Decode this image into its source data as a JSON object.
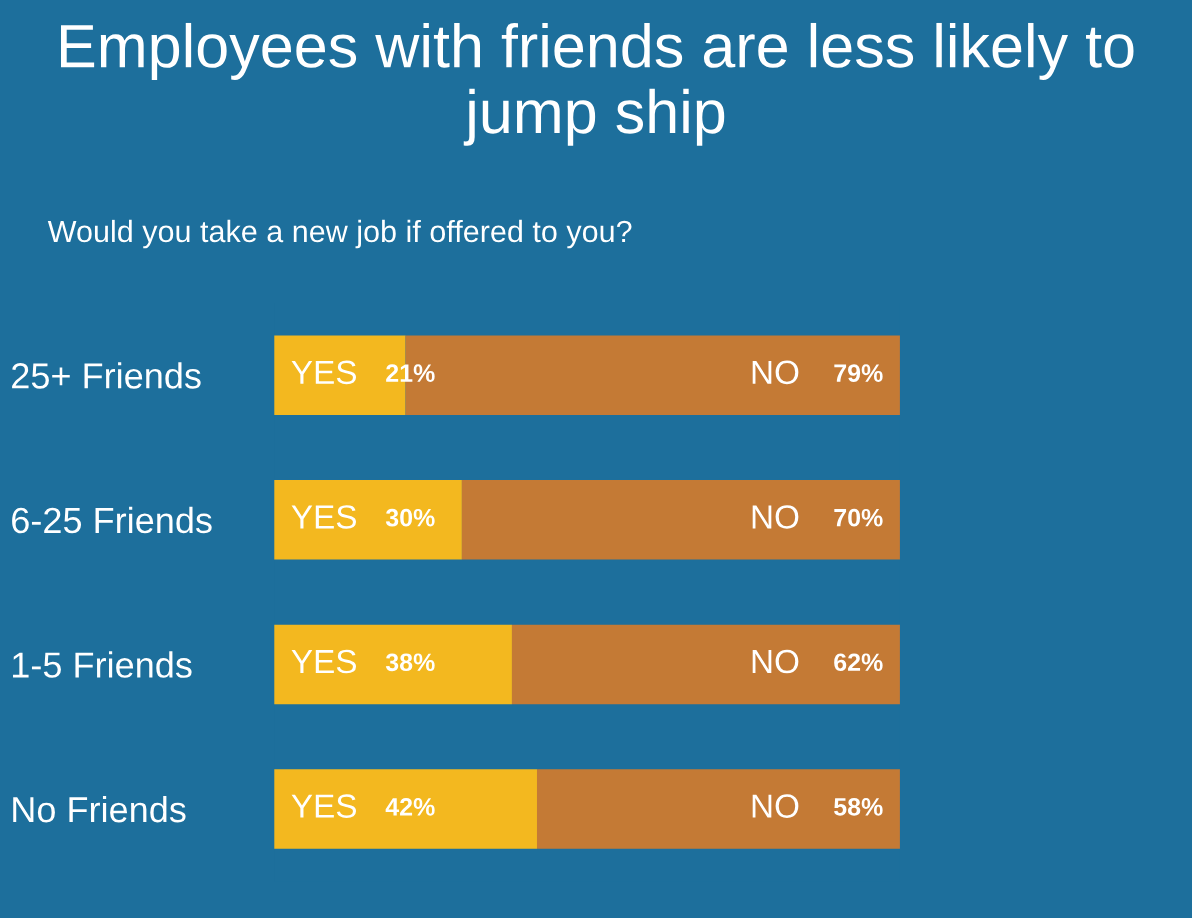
{
  "chart_data": {
    "type": "bar",
    "orientation": "horizontal",
    "stacked": true,
    "title": "Employees with friends are less likely to jump ship",
    "subtitle": "Would you take a new job if offered to you?",
    "categories": [
      "25+ Friends",
      "6-25 Friends",
      "1-5 Friends",
      "No Friends"
    ],
    "series": [
      {
        "name": "YES",
        "color": "#f3b81f",
        "values": [
          21,
          30,
          38,
          42
        ],
        "value_labels": [
          "21%",
          "30%",
          "38%",
          "42%"
        ]
      },
      {
        "name": "NO",
        "color": "#c47a35",
        "values": [
          79,
          70,
          62,
          58
        ],
        "value_labels": [
          "79%",
          "70%",
          "62%",
          "58%"
        ]
      }
    ],
    "tick_labels": "y",
    "legend": false,
    "grid": false
  }
}
